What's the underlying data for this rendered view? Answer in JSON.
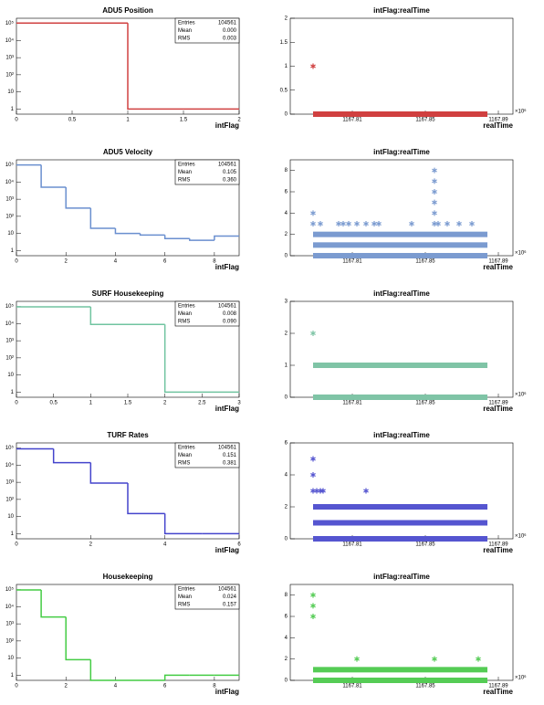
{
  "chart_data": [
    {
      "type": "histogram",
      "title": "ADU5 Position",
      "x_label": "intFlag",
      "color": "#d04040",
      "bins": [
        0,
        1,
        2
      ],
      "values": [
        104560,
        1
      ],
      "xlim": [
        0,
        2
      ],
      "xticks": [
        0,
        0.5,
        1,
        1.5,
        2
      ],
      "log_y": true,
      "ylim": [
        0.5,
        200000
      ],
      "yticks": [
        1,
        10,
        {
          "value": 100,
          "label": "10²"
        },
        {
          "value": 1000,
          "label": "10³"
        },
        {
          "value": 10000,
          "label": "10⁴"
        },
        {
          "value": 100000,
          "label": "10⁵"
        }
      ],
      "stats": [
        {
          "name": "Entries",
          "value": "104561"
        },
        {
          "name": "Mean",
          "value": "0.000"
        },
        {
          "name": "RMS",
          "value": "0.003"
        }
      ]
    },
    {
      "type": "scatter",
      "title": "intFlag:realTime",
      "x_label": "realTime",
      "x_exponent": "×10⁶",
      "color": "#d04040",
      "xlim": [
        1167.776,
        1167.898
      ],
      "xticks": [
        1167.81,
        1167.85,
        1167.89
      ],
      "ylim": [
        0,
        2
      ],
      "yticks": [
        0,
        0.5,
        1,
        1.5,
        2
      ],
      "points": {
        "x": [
          1167.7885
        ],
        "y": [
          1
        ]
      },
      "bands": [
        {
          "y": 0,
          "x": [
            1167.7885,
            1167.884
          ]
        }
      ]
    },
    {
      "type": "histogram",
      "title": "ADU5 Velocity",
      "x_label": "intFlag",
      "color": "#6a8fcf",
      "bins": [
        0,
        1,
        2,
        3,
        4,
        5,
        6,
        7,
        8,
        9
      ],
      "values": [
        100000,
        5000,
        300,
        20,
        10,
        8,
        5,
        4,
        7
      ],
      "xlim": [
        0,
        9
      ],
      "xticks": [
        0,
        2,
        4,
        6,
        8
      ],
      "log_y": true,
      "ylim": [
        0.5,
        200000
      ],
      "yticks": [
        1,
        10,
        {
          "value": 100,
          "label": "10²"
        },
        {
          "value": 1000,
          "label": "10³"
        },
        {
          "value": 10000,
          "label": "10⁴"
        },
        {
          "value": 100000,
          "label": "10⁵"
        }
      ],
      "stats": [
        {
          "name": "Entries",
          "value": "104561"
        },
        {
          "name": "Mean",
          "value": "0.105"
        },
        {
          "name": "RMS",
          "value": "0.360"
        }
      ]
    },
    {
      "type": "scatter",
      "title": "intFlag:realTime",
      "x_label": "realTime",
      "x_exponent": "×10⁶",
      "color": "#7b9bd0",
      "xlim": [
        1167.776,
        1167.898
      ],
      "xticks": [
        1167.81,
        1167.85,
        1167.89
      ],
      "ylim": [
        0,
        9
      ],
      "yticks": [
        0,
        2,
        4,
        6,
        8
      ],
      "points": {
        "x": [
          1167.7885,
          1167.7925,
          1167.8025,
          1167.805,
          1167.808,
          1167.8125,
          1167.8175,
          1167.822,
          1167.8245,
          1167.8425,
          1167.855,
          1167.857,
          1167.862,
          1167.8685,
          1167.8755,
          1167.7885,
          1167.855,
          1167.855,
          1167.855,
          1167.855,
          1167.855
        ],
        "y": [
          3,
          3,
          3,
          3,
          3,
          3,
          3,
          3,
          3,
          3,
          3,
          3,
          3,
          3,
          3,
          4,
          4,
          5,
          6,
          7,
          8
        ]
      },
      "bands": [
        {
          "y": 0,
          "x": [
            1167.7885,
            1167.884
          ]
        },
        {
          "y": 1,
          "x": [
            1167.7885,
            1167.884
          ]
        },
        {
          "y": 2,
          "x": [
            1167.7885,
            1167.884
          ]
        }
      ]
    },
    {
      "type": "histogram",
      "title": "SURF Housekeeping",
      "x_label": "intFlag",
      "color": "#70c4a0",
      "bins": [
        0,
        1,
        2,
        3
      ],
      "values": [
        95000,
        9000,
        1
      ],
      "xlim": [
        0,
        3
      ],
      "xticks": [
        0,
        0.5,
        1,
        1.5,
        2,
        2.5,
        3
      ],
      "log_y": true,
      "ylim": [
        0.5,
        200000
      ],
      "yticks": [
        1,
        10,
        {
          "value": 100,
          "label": "10²"
        },
        {
          "value": 1000,
          "label": "10³"
        },
        {
          "value": 10000,
          "label": "10⁴"
        },
        {
          "value": 100000,
          "label": "10⁵"
        }
      ],
      "stats": [
        {
          "name": "Entries",
          "value": "104561"
        },
        {
          "name": "Mean",
          "value": "0.008"
        },
        {
          "name": "RMS",
          "value": "0.090"
        }
      ]
    },
    {
      "type": "scatter",
      "title": "intFlag:realTime",
      "x_label": "realTime",
      "x_exponent": "×10⁶",
      "color": "#7fc4a6",
      "xlim": [
        1167.776,
        1167.898
      ],
      "xticks": [
        1167.81,
        1167.85,
        1167.89
      ],
      "ylim": [
        0,
        3
      ],
      "yticks": [
        0,
        1,
        2,
        3
      ],
      "points": {
        "x": [
          1167.7885
        ],
        "y": [
          2
        ]
      },
      "bands": [
        {
          "y": 0,
          "x": [
            1167.7885,
            1167.884
          ]
        },
        {
          "y": 1,
          "x": [
            1167.7885,
            1167.884
          ]
        }
      ]
    },
    {
      "type": "histogram",
      "title": "TURF Rates",
      "x_label": "intFlag",
      "color": "#4444cc",
      "bins": [
        0,
        1,
        2,
        3,
        4,
        5,
        6
      ],
      "values": [
        90000,
        14000,
        900,
        15,
        1,
        1
      ],
      "xlim": [
        0,
        6
      ],
      "xticks": [
        0,
        2,
        4,
        6
      ],
      "log_y": true,
      "ylim": [
        0.5,
        200000
      ],
      "yticks": [
        1,
        10,
        {
          "value": 100,
          "label": "10²"
        },
        {
          "value": 1000,
          "label": "10³"
        },
        {
          "value": 10000,
          "label": "10⁴"
        },
        {
          "value": 100000,
          "label": "10⁵"
        }
      ],
      "stats": [
        {
          "name": "Entries",
          "value": "104561"
        },
        {
          "name": "Mean",
          "value": "0.151"
        },
        {
          "name": "RMS",
          "value": "0.381"
        }
      ]
    },
    {
      "type": "scatter",
      "title": "intFlag:realTime",
      "x_label": "realTime",
      "x_exponent": "×10⁶",
      "color": "#5555d0",
      "xlim": [
        1167.776,
        1167.898
      ],
      "xticks": [
        1167.81,
        1167.85,
        1167.89
      ],
      "ylim": [
        0,
        6
      ],
      "yticks": [
        0,
        2,
        4,
        6
      ],
      "points": {
        "x": [
          1167.7885,
          1167.7885,
          1167.7885,
          1167.7905,
          1167.7925,
          1167.794,
          1167.8175
        ],
        "y": [
          5,
          4,
          3,
          3,
          3,
          3,
          3
        ]
      },
      "bands": [
        {
          "y": 0,
          "x": [
            1167.7885,
            1167.884
          ]
        },
        {
          "y": 1,
          "x": [
            1167.7885,
            1167.884
          ]
        },
        {
          "y": 2,
          "x": [
            1167.7885,
            1167.884
          ]
        }
      ]
    },
    {
      "type": "histogram",
      "title": "Housekeeping",
      "x_label": "intFlag",
      "color": "#44cc44",
      "bins": [
        0,
        1,
        2,
        3,
        4,
        5,
        6,
        7,
        8,
        9
      ],
      "values": [
        95000,
        2500,
        8,
        0,
        0,
        0,
        1,
        1,
        1
      ],
      "xlim": [
        0,
        9
      ],
      "xticks": [
        0,
        2,
        4,
        6,
        8
      ],
      "log_y": true,
      "ylim": [
        0.5,
        200000
      ],
      "yticks": [
        1,
        10,
        {
          "value": 100,
          "label": "10²"
        },
        {
          "value": 1000,
          "label": "10³"
        },
        {
          "value": 10000,
          "label": "10⁴"
        },
        {
          "value": 100000,
          "label": "10⁵"
        }
      ],
      "stats": [
        {
          "name": "Entries",
          "value": "104561"
        },
        {
          "name": "Mean",
          "value": "0.024"
        },
        {
          "name": "RMS",
          "value": "0.157"
        }
      ]
    },
    {
      "type": "scatter",
      "title": "intFlag:realTime",
      "x_label": "realTime",
      "x_exponent": "×10⁶",
      "color": "#55cc55",
      "xlim": [
        1167.776,
        1167.898
      ],
      "xticks": [
        1167.81,
        1167.85,
        1167.89
      ],
      "ylim": [
        0,
        9
      ],
      "yticks": [
        0,
        2,
        4,
        6,
        8
      ],
      "points": {
        "x": [
          1167.7885,
          1167.7885,
          1167.7885,
          1167.8125,
          1167.855,
          1167.879
        ],
        "y": [
          8,
          7,
          6,
          2,
          2,
          2
        ]
      },
      "bands": [
        {
          "y": 0,
          "x": [
            1167.7885,
            1167.884
          ]
        },
        {
          "y": 1,
          "x": [
            1167.7885,
            1167.884
          ]
        }
      ]
    }
  ]
}
